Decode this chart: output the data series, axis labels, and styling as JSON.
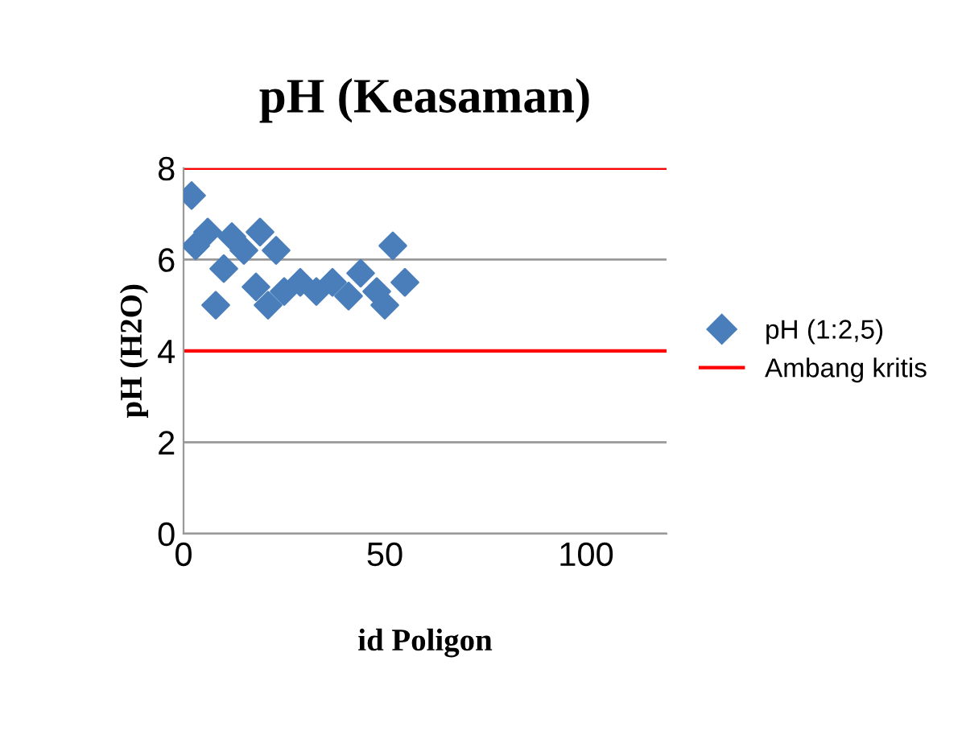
{
  "chart_data": {
    "type": "scatter",
    "title": "pH (Keasaman)",
    "xlabel": "id Poligon",
    "ylabel": "pH (H2O)",
    "xlim": [
      0,
      120
    ],
    "xticks": [
      0,
      50,
      100
    ],
    "ylim": [
      0,
      8
    ],
    "yticks": [
      0,
      2,
      4,
      6,
      8
    ],
    "grid": "y",
    "legend": "right",
    "marker": "diamond",
    "series": [
      {
        "name": "pH (1:2,5)",
        "color": "#4a7ebb",
        "x": [
          2,
          3,
          6,
          8,
          10,
          12,
          15,
          18,
          19,
          21,
          23,
          25,
          29,
          33,
          37,
          41,
          44,
          48,
          50,
          52,
          55
        ],
        "values": [
          7.4,
          6.3,
          6.6,
          5.0,
          5.8,
          6.5,
          6.2,
          5.4,
          6.6,
          5.0,
          6.2,
          5.3,
          5.5,
          5.3,
          5.5,
          5.2,
          5.7,
          5.3,
          5.0,
          6.3,
          5.5
        ]
      }
    ],
    "ref_lines": [
      {
        "axis": "y",
        "value": 8,
        "label": "Ambang kritis",
        "color": "#ff0000"
      },
      {
        "axis": "y",
        "value": 4,
        "color": "#ff0000"
      }
    ]
  }
}
